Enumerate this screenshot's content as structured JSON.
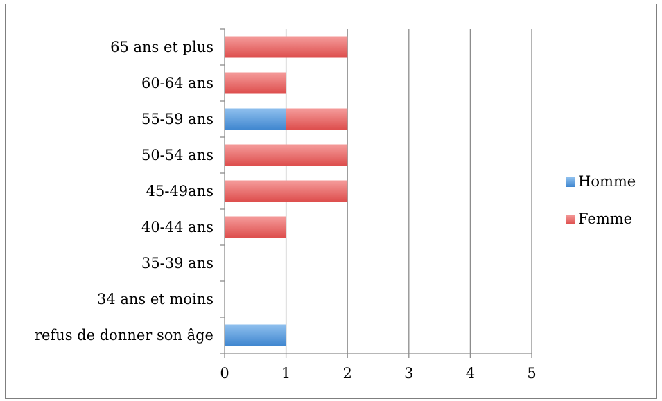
{
  "chart_data": {
    "type": "bar",
    "orientation": "horizontal",
    "stacked": true,
    "title": "",
    "xlabel": "",
    "ylabel": "",
    "categories": [
      "refus de donner son âge",
      "34 ans et moins",
      "35-39 ans",
      "40-44 ans",
      "45-49ans",
      "50-54 ans",
      "55-59 ans",
      "60-64 ans",
      "65 ans et plus"
    ],
    "series": [
      {
        "name": "Homme",
        "color": "#5b9bd5",
        "values": [
          1,
          0,
          0,
          0,
          0,
          0,
          1,
          0,
          0
        ]
      },
      {
        "name": "Femme",
        "color": "#e8605f",
        "values": [
          0,
          0,
          0,
          1,
          2,
          2,
          1,
          1,
          2
        ]
      }
    ],
    "xlim": [
      0,
      5
    ],
    "xticks": [
      0,
      1,
      2,
      3,
      4,
      5
    ],
    "grid": true,
    "legend_position": "right"
  }
}
